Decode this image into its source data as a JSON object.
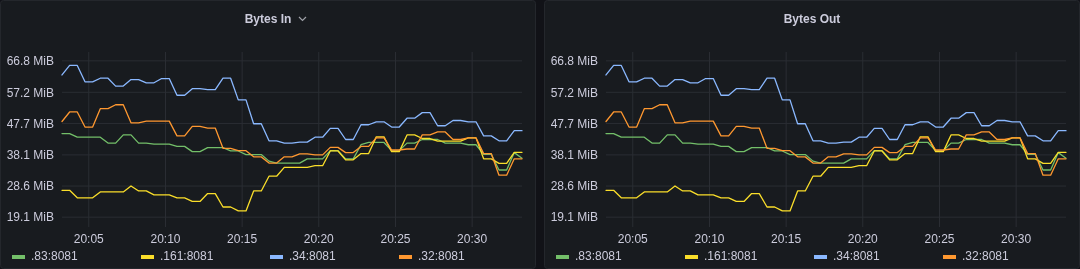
{
  "chart_data": [
    {
      "type": "line",
      "title": "Bytes In",
      "grid": true,
      "legend": "bottom",
      "x": [
        20.0542,
        20.0625,
        20.0708,
        20.0792,
        20.0875,
        20.0958,
        20.1042,
        20.1125,
        20.1208,
        20.1292,
        20.1375,
        20.1458,
        20.1542,
        20.1625,
        20.1708,
        20.1792,
        20.1875,
        20.1958,
        20.2042,
        20.2125,
        20.2208,
        20.2292,
        20.2375,
        20.2458,
        20.2542,
        20.2625,
        20.2708,
        20.2792,
        20.2875,
        20.2958,
        20.3042,
        20.3125,
        20.3208,
        20.3292,
        20.3375,
        20.3458,
        20.3542,
        20.3625,
        20.3708,
        20.3792,
        20.3875,
        20.3958,
        20.4042,
        20.4125,
        20.4208,
        20.4292,
        20.4375,
        20.4458,
        20.4542,
        20.4625,
        20.4708,
        20.4792,
        20.4875,
        20.4958,
        20.5042,
        20.5125,
        20.5208,
        20.5292,
        20.5375,
        20.5458,
        20.5542
      ],
      "xlim": [
        20.0542,
        20.5542
      ],
      "xticks": [
        {
          "value": 20.0833,
          "label": "20:05"
        },
        {
          "value": 20.1667,
          "label": "20:10"
        },
        {
          "value": 20.25,
          "label": "20:15"
        },
        {
          "value": 20.3333,
          "label": "20:20"
        },
        {
          "value": 20.4167,
          "label": "20:25"
        },
        {
          "value": 20.5,
          "label": "20:30"
        }
      ],
      "ylim": [
        16.1,
        69.5
      ],
      "yticks": [
        {
          "value": 19.1,
          "label": "19.1 MiB"
        },
        {
          "value": 28.6,
          "label": "28.6 MiB"
        },
        {
          "value": 38.1,
          "label": "38.1 MiB"
        },
        {
          "value": 47.7,
          "label": "47.7 MiB"
        },
        {
          "value": 57.2,
          "label": "57.2 MiB"
        },
        {
          "value": 66.8,
          "label": "66.8 MiB"
        }
      ],
      "series": [
        {
          "name": ".83:8081",
          "color": "#73bf69",
          "values": [
            44.6,
            44.6,
            43.5,
            43.5,
            43.5,
            43.5,
            41.7,
            41.7,
            44.2,
            44.2,
            41.7,
            41.7,
            41.4,
            41.4,
            41.4,
            40.7,
            40.7,
            39.1,
            39.1,
            40.3,
            40.3,
            40.3,
            39.3,
            39.3,
            38.2,
            38.2,
            38.2,
            36.2,
            35.6,
            35.6,
            35.6,
            35.6,
            36.9,
            36.9,
            36.9,
            39.4,
            39.4,
            36.9,
            36.9,
            41.2,
            41.9,
            41.9,
            41.9,
            39.4,
            39.4,
            41.7,
            41.7,
            42.8,
            42.8,
            42.8,
            41.7,
            41.7,
            41.7,
            41.2,
            41.2,
            38.3,
            38.3,
            33.5,
            33.5,
            38.8,
            37.1
          ]
        },
        {
          "name": ".161:8081",
          "color": "#fade2a",
          "values": [
            27.3,
            27.3,
            25.0,
            25.0,
            25.0,
            26.8,
            26.8,
            26.8,
            26.8,
            28.6,
            27.1,
            27.1,
            25.9,
            25.9,
            25.9,
            25.0,
            25.0,
            23.9,
            23.9,
            26.3,
            26.3,
            22.2,
            22.2,
            21.0,
            21.0,
            27.1,
            27.1,
            31.6,
            31.6,
            34.3,
            34.3,
            34.3,
            34.3,
            34.8,
            34.8,
            39.3,
            39.3,
            36.6,
            36.6,
            38.5,
            38.5,
            43.6,
            43.6,
            39.1,
            39.1,
            44.2,
            44.2,
            43.1,
            43.1,
            42.3,
            42.3,
            42.3,
            42.3,
            43.3,
            43.3,
            36.9,
            36.9,
            35.5,
            35.5,
            38.9,
            38.9
          ]
        },
        {
          "name": ".34:8081",
          "color": "#8ab8ff",
          "values": [
            62.5,
            65.4,
            65.4,
            60.4,
            60.4,
            61.5,
            61.5,
            59.1,
            59.1,
            61.1,
            61.1,
            60.1,
            60.1,
            61.4,
            61.4,
            56.3,
            56.3,
            58.3,
            58.3,
            58.0,
            58.0,
            61.5,
            61.5,
            54.9,
            54.9,
            47.6,
            47.6,
            42.4,
            42.4,
            41.7,
            41.7,
            42.0,
            42.0,
            43.5,
            43.5,
            46.2,
            46.2,
            42.8,
            42.8,
            47.3,
            47.3,
            48.2,
            48.2,
            46.6,
            46.6,
            49.3,
            49.3,
            51.0,
            51.0,
            47.0,
            47.0,
            48.6,
            48.6,
            48.2,
            48.2,
            43.9,
            43.9,
            42.4,
            42.4,
            45.5,
            45.5
          ]
        },
        {
          "name": ".32:8081",
          "color": "#ff9830",
          "values": [
            48.3,
            51.2,
            51.2,
            46.6,
            46.6,
            52.2,
            52.2,
            53.4,
            53.4,
            47.9,
            47.9,
            48.4,
            48.4,
            48.4,
            48.4,
            43.9,
            43.9,
            46.8,
            46.8,
            46.3,
            46.3,
            40.1,
            40.1,
            39.4,
            39.4,
            37.5,
            37.5,
            35.6,
            35.6,
            37.5,
            37.5,
            38.4,
            38.4,
            38.1,
            38.1,
            40.4,
            40.4,
            38.8,
            38.8,
            40.7,
            40.7,
            43.3,
            43.3,
            39.6,
            39.6,
            39.9,
            39.9,
            44.2,
            44.2,
            45.1,
            45.1,
            42.8,
            42.8,
            43.3,
            43.3,
            38.5,
            38.5,
            31.9,
            31.9,
            36.9,
            36.9
          ]
        }
      ]
    },
    {
      "type": "line",
      "title": "Bytes Out",
      "grid": true,
      "legend": "bottom",
      "x": [
        20.0542,
        20.0625,
        20.0708,
        20.0792,
        20.0875,
        20.0958,
        20.1042,
        20.1125,
        20.1208,
        20.1292,
        20.1375,
        20.1458,
        20.1542,
        20.1625,
        20.1708,
        20.1792,
        20.1875,
        20.1958,
        20.2042,
        20.2125,
        20.2208,
        20.2292,
        20.2375,
        20.2458,
        20.2542,
        20.2625,
        20.2708,
        20.2792,
        20.2875,
        20.2958,
        20.3042,
        20.3125,
        20.3208,
        20.3292,
        20.3375,
        20.3458,
        20.3542,
        20.3625,
        20.3708,
        20.3792,
        20.3875,
        20.3958,
        20.4042,
        20.4125,
        20.4208,
        20.4292,
        20.4375,
        20.4458,
        20.4542,
        20.4625,
        20.4708,
        20.4792,
        20.4875,
        20.4958,
        20.5042,
        20.5125,
        20.5208,
        20.5292,
        20.5375,
        20.5458,
        20.5542
      ],
      "xlim": [
        20.0542,
        20.5542
      ],
      "xticks": [
        {
          "value": 20.0833,
          "label": "20:05"
        },
        {
          "value": 20.1667,
          "label": "20:10"
        },
        {
          "value": 20.25,
          "label": "20:15"
        },
        {
          "value": 20.3333,
          "label": "20:20"
        },
        {
          "value": 20.4167,
          "label": "20:25"
        },
        {
          "value": 20.5,
          "label": "20:30"
        }
      ],
      "ylim": [
        16.1,
        69.5
      ],
      "yticks": [
        {
          "value": 19.1,
          "label": "19.1 MiB"
        },
        {
          "value": 28.6,
          "label": "28.6 MiB"
        },
        {
          "value": 38.1,
          "label": "38.1 MiB"
        },
        {
          "value": 47.7,
          "label": "47.7 MiB"
        },
        {
          "value": 57.2,
          "label": "57.2 MiB"
        },
        {
          "value": 66.8,
          "label": "66.8 MiB"
        }
      ],
      "series": [
        {
          "name": ".83:8081",
          "color": "#73bf69",
          "values": [
            44.6,
            44.6,
            43.5,
            43.5,
            43.5,
            43.5,
            41.7,
            41.7,
            44.2,
            44.2,
            41.7,
            41.7,
            41.4,
            41.4,
            41.4,
            40.7,
            40.7,
            39.1,
            39.1,
            40.3,
            40.3,
            40.3,
            39.3,
            39.3,
            38.2,
            38.2,
            38.2,
            36.2,
            35.6,
            35.6,
            35.6,
            35.6,
            36.9,
            36.9,
            36.9,
            39.4,
            39.4,
            36.9,
            36.9,
            41.2,
            41.9,
            41.9,
            41.9,
            39.4,
            39.4,
            41.7,
            41.7,
            42.8,
            42.8,
            42.8,
            41.7,
            41.7,
            41.7,
            41.2,
            41.2,
            38.3,
            38.3,
            33.5,
            33.5,
            38.8,
            37.1
          ]
        },
        {
          "name": ".161:8081",
          "color": "#fade2a",
          "values": [
            27.3,
            27.3,
            25.0,
            25.0,
            25.0,
            26.8,
            26.8,
            26.8,
            26.8,
            28.6,
            27.1,
            27.1,
            25.9,
            25.9,
            25.9,
            25.0,
            25.0,
            23.9,
            23.9,
            26.3,
            26.3,
            22.2,
            22.2,
            21.0,
            21.0,
            27.1,
            27.1,
            31.6,
            31.6,
            34.3,
            34.3,
            34.3,
            34.3,
            34.8,
            34.8,
            39.3,
            39.3,
            36.6,
            36.6,
            38.5,
            38.5,
            43.6,
            43.6,
            39.1,
            39.1,
            44.2,
            44.2,
            43.1,
            43.1,
            42.3,
            42.3,
            42.3,
            42.3,
            43.3,
            43.3,
            36.9,
            36.9,
            35.5,
            35.5,
            38.9,
            38.9
          ]
        },
        {
          "name": ".34:8081",
          "color": "#8ab8ff",
          "values": [
            62.5,
            65.4,
            65.4,
            60.4,
            60.4,
            61.5,
            61.5,
            59.1,
            59.1,
            61.1,
            61.1,
            60.1,
            60.1,
            61.4,
            61.4,
            56.3,
            56.3,
            58.3,
            58.3,
            58.0,
            58.0,
            61.5,
            61.5,
            54.9,
            54.9,
            47.6,
            47.6,
            42.4,
            42.4,
            41.7,
            41.7,
            42.0,
            42.0,
            43.5,
            43.5,
            46.2,
            46.2,
            42.8,
            42.8,
            47.3,
            47.3,
            48.2,
            48.2,
            46.6,
            46.6,
            49.3,
            49.3,
            51.0,
            51.0,
            47.0,
            47.0,
            48.6,
            48.6,
            48.2,
            48.2,
            43.9,
            43.9,
            42.4,
            42.4,
            45.5,
            45.5
          ]
        },
        {
          "name": ".32:8081",
          "color": "#ff9830",
          "values": [
            48.3,
            51.2,
            51.2,
            46.6,
            46.6,
            52.2,
            52.2,
            53.4,
            53.4,
            47.9,
            47.9,
            48.4,
            48.4,
            48.4,
            48.4,
            43.9,
            43.9,
            46.8,
            46.8,
            46.3,
            46.3,
            40.1,
            40.1,
            39.4,
            39.4,
            37.5,
            37.5,
            35.6,
            35.6,
            37.5,
            37.5,
            38.4,
            38.4,
            38.1,
            38.1,
            40.4,
            40.4,
            38.8,
            38.8,
            40.7,
            40.7,
            43.3,
            43.3,
            39.6,
            39.6,
            39.9,
            39.9,
            44.2,
            44.2,
            45.1,
            45.1,
            42.8,
            42.8,
            43.3,
            43.3,
            38.5,
            38.5,
            31.9,
            31.9,
            36.9,
            36.9
          ]
        }
      ]
    }
  ]
}
